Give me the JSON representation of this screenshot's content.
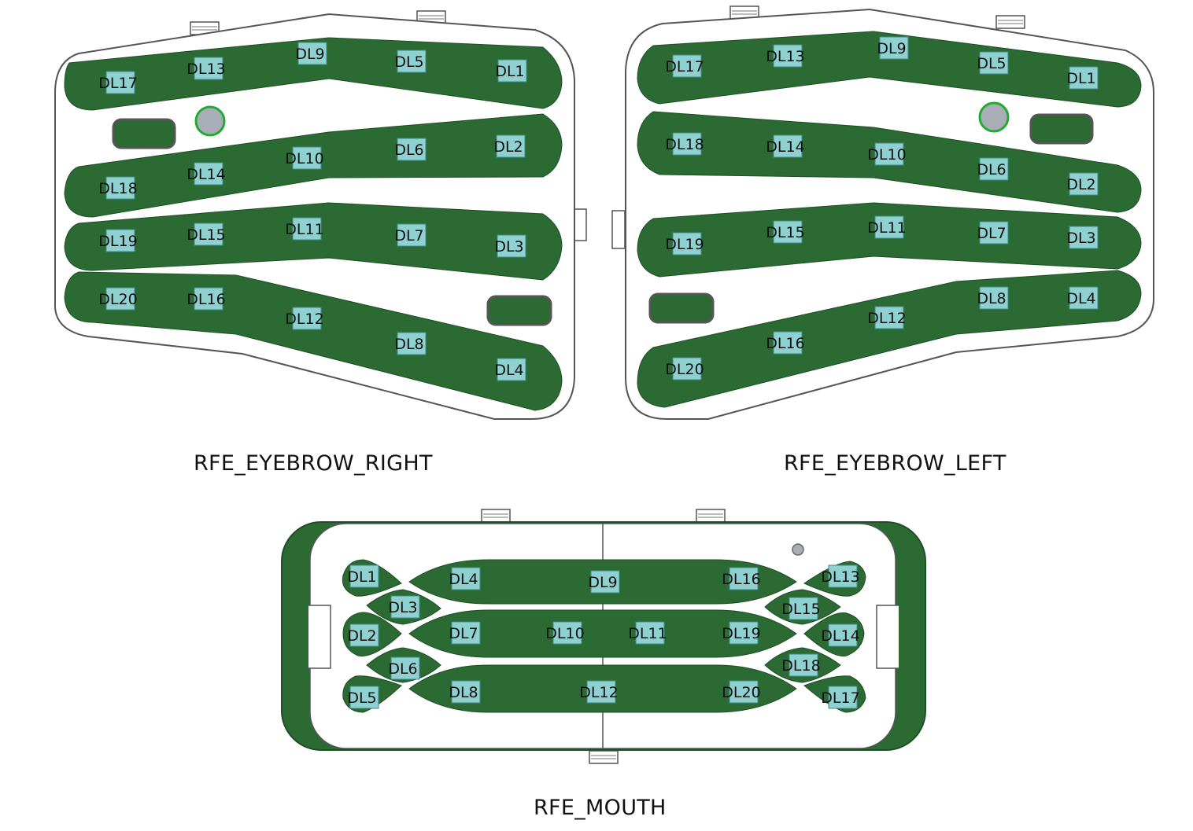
{
  "captions": {
    "eyebrow_right": "RFE_EYEBROW_RIGHT",
    "eyebrow_left": "RFE_EYEBROW_LEFT",
    "mouth": "RFE_MOUTH"
  },
  "colors": {
    "strip_green": "#2b6a33",
    "strip_edge": "#1e4f26",
    "board_fill": "#ffffff",
    "board_edge": "#555555",
    "led_fill": "#8fd0d0",
    "led_edge": "#3c8c8c",
    "led_text": "#111111",
    "mount_hole": "#a9adb6",
    "mount_ring": "#22aa33"
  },
  "eyebrow_right": {
    "leds": [
      "DL1",
      "DL2",
      "DL3",
      "DL4",
      "DL5",
      "DL6",
      "DL7",
      "DL8",
      "DL9",
      "DL10",
      "DL11",
      "DL12",
      "DL13",
      "DL14",
      "DL15",
      "DL16",
      "DL17",
      "DL18",
      "DL19",
      "DL20"
    ]
  },
  "eyebrow_left": {
    "leds": [
      "DL1",
      "DL2",
      "DL3",
      "DL4",
      "DL5",
      "DL6",
      "DL7",
      "DL8",
      "DL9",
      "DL10",
      "DL11",
      "DL12",
      "DL13",
      "DL14",
      "DL15",
      "DL16",
      "DL17",
      "DL18",
      "DL19",
      "DL20"
    ]
  },
  "mouth": {
    "leds": [
      "DL1",
      "DL2",
      "DL3",
      "DL4",
      "DL5",
      "DL6",
      "DL7",
      "DL8",
      "DL9",
      "DL10",
      "DL11",
      "DL12",
      "DL13",
      "DL14",
      "DL15",
      "DL16",
      "DL17",
      "DL18",
      "DL19",
      "DL20"
    ]
  }
}
